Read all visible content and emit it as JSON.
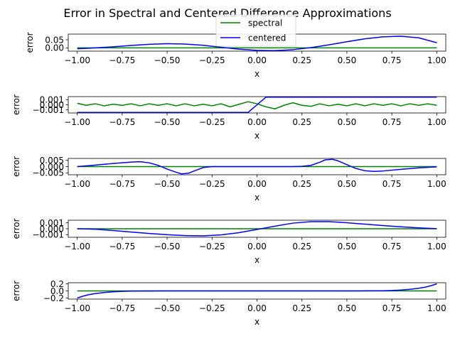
{
  "title": "Error in Spectral and Centered Difference Approximations",
  "legend": {
    "placement": "top-center",
    "entries": [
      "spectral",
      "centered"
    ]
  },
  "colors": {
    "spectral": "#008000",
    "centered": "#0000ff",
    "axes": "#000000"
  },
  "chart_data": [
    {
      "type": "line",
      "xlabel": "x",
      "ylabel": "error",
      "xlim": [
        -1.05,
        1.05
      ],
      "ylim": [
        -0.02,
        0.085
      ],
      "xticks": [
        -1.0,
        -0.75,
        -0.5,
        -0.25,
        0.0,
        0.25,
        0.5,
        0.75,
        1.0
      ],
      "xtick_labels": [
        "−1.00",
        "−0.75",
        "−0.50",
        "−0.25",
        "0.00",
        "0.25",
        "0.50",
        "0.75",
        "1.00"
      ],
      "yticks": [
        0.0,
        0.05
      ],
      "ytick_labels": [
        "0.00",
        "0.05"
      ],
      "series": [
        {
          "name": "spectral",
          "x": [
            -1,
            1
          ],
          "y": [
            0,
            0
          ]
        },
        {
          "name": "centered",
          "x": [
            -1,
            -0.9,
            -0.8,
            -0.7,
            -0.6,
            -0.5,
            -0.4,
            -0.3,
            -0.2,
            -0.1,
            0,
            0.1,
            0.2,
            0.3,
            0.4,
            0.5,
            0.6,
            0.7,
            0.8,
            0.9,
            1
          ],
          "y": [
            -0.005,
            0.0,
            0.007,
            0.015,
            0.022,
            0.026,
            0.024,
            0.016,
            0.004,
            -0.008,
            -0.015,
            -0.017,
            -0.011,
            0.002,
            0.019,
            0.038,
            0.056,
            0.068,
            0.072,
            0.062,
            0.032
          ]
        }
      ]
    },
    {
      "type": "line",
      "xlabel": "x",
      "ylabel": "error",
      "xlim": [
        -1.05,
        1.05
      ],
      "ylim": [
        -0.0016,
        0.0016
      ],
      "xticks": [
        -1.0,
        -0.75,
        -0.5,
        -0.25,
        0.0,
        0.25,
        0.5,
        0.75,
        1.0
      ],
      "xtick_labels": [
        "−1.00",
        "−0.75",
        "−0.50",
        "−0.25",
        "0.00",
        "0.25",
        "0.50",
        "0.75",
        "1.00"
      ],
      "yticks": [
        -0.001,
        0.0,
        0.001
      ],
      "ytick_labels": [
        "−0.001",
        "0.000",
        "0.001"
      ],
      "series": [
        {
          "name": "spectral",
          "x": [
            -1,
            -0.95,
            -0.9,
            -0.85,
            -0.8,
            -0.75,
            -0.7,
            -0.65,
            -0.6,
            -0.55,
            -0.5,
            -0.45,
            -0.4,
            -0.35,
            -0.3,
            -0.25,
            -0.2,
            -0.15,
            -0.1,
            -0.05,
            0,
            0.05,
            0.1,
            0.15,
            0.2,
            0.25,
            0.3,
            0.35,
            0.4,
            0.45,
            0.5,
            0.55,
            0.6,
            0.65,
            0.7,
            0.75,
            0.8,
            0.85,
            0.9,
            0.95,
            1
          ],
          "y": [
            0.0003,
            -0.0001,
            0.0002,
            -0.0002,
            0.0001,
            -0.0001,
            0.0002,
            -0.0002,
            0.0002,
            -0.0001,
            0.0002,
            -0.0002,
            0.0002,
            -0.0002,
            0.0001,
            -0.0002,
            0.0002,
            -0.0004,
            0.0001,
            0.0006,
            0.0002,
            -0.0004,
            -0.0008,
            -0.0001,
            0.0004,
            -0.0001,
            -0.0003,
            0.0002,
            -0.0002,
            0.0001,
            -0.0002,
            0.0002,
            -0.0002,
            0.0002,
            -0.0001,
            0.0002,
            -0.0002,
            0.0002,
            -0.0001,
            0.0002,
            -0.0001
          ]
        },
        {
          "name": "centered",
          "x": [
            -1,
            -0.05,
            0.05,
            1
          ],
          "y": [
            -0.0015,
            -0.0015,
            0.0015,
            0.0015
          ]
        }
      ]
    },
    {
      "type": "line",
      "xlabel": "x",
      "ylabel": "error",
      "xlim": [
        -1.05,
        1.05
      ],
      "ylim": [
        -0.0065,
        0.0065
      ],
      "xticks": [
        -1.0,
        -0.75,
        -0.5,
        -0.25,
        0.0,
        0.25,
        0.5,
        0.75,
        1.0
      ],
      "xtick_labels": [
        "−1.00",
        "−0.75",
        "−0.50",
        "−0.25",
        "0.00",
        "0.25",
        "0.50",
        "0.75",
        "1.00"
      ],
      "yticks": [
        -0.005,
        0.0,
        0.005
      ],
      "ytick_labels": [
        "−0.005",
        "0.000",
        "0.005"
      ],
      "series": [
        {
          "name": "spectral",
          "x": [
            -1,
            1
          ],
          "y": [
            0,
            0
          ]
        },
        {
          "name": "centered",
          "x": [
            -1,
            -0.9,
            -0.8,
            -0.7,
            -0.65,
            -0.6,
            -0.55,
            -0.5,
            -0.45,
            -0.42,
            -0.38,
            -0.35,
            -0.3,
            -0.25,
            -0.2,
            0,
            0.2,
            0.25,
            0.3,
            0.35,
            0.38,
            0.42,
            0.45,
            0.5,
            0.55,
            0.6,
            0.65,
            0.7,
            0.8,
            0.9,
            1
          ],
          "y": [
            0.0,
            0.0012,
            0.0025,
            0.0036,
            0.0039,
            0.003,
            0.001,
            -0.002,
            -0.0045,
            -0.0058,
            -0.0052,
            -0.0035,
            -0.0008,
            0.0,
            0.0,
            0.0,
            0.0,
            0.0002,
            0.001,
            0.0035,
            0.0054,
            0.0058,
            0.0046,
            0.0015,
            -0.0015,
            -0.0033,
            -0.0038,
            -0.0035,
            -0.0022,
            -0.001,
            -0.0002
          ]
        }
      ]
    },
    {
      "type": "line",
      "xlabel": "x",
      "ylabel": "error",
      "xlim": [
        -1.05,
        1.05
      ],
      "ylim": [
        -0.00145,
        0.00145
      ],
      "xticks": [
        -1.0,
        -0.75,
        -0.5,
        -0.25,
        0.0,
        0.25,
        0.5,
        0.75,
        1.0
      ],
      "xtick_labels": [
        "−1.00",
        "−0.75",
        "−0.50",
        "−0.25",
        "0.00",
        "0.25",
        "0.50",
        "0.75",
        "1.00"
      ],
      "yticks": [
        -0.001,
        0.0,
        0.001
      ],
      "ytick_labels": [
        "−0.001",
        "0.000",
        "0.001"
      ],
      "series": [
        {
          "name": "spectral",
          "x": [
            -1,
            1
          ],
          "y": [
            0,
            0
          ]
        },
        {
          "name": "centered",
          "x": [
            -1,
            -0.9,
            -0.8,
            -0.7,
            -0.6,
            -0.5,
            -0.4,
            -0.3,
            -0.2,
            -0.1,
            0,
            0.1,
            0.2,
            0.3,
            0.4,
            0.5,
            0.6,
            0.7,
            0.8,
            0.9,
            1
          ],
          "y": [
            0.0,
            -8e-05,
            -0.0003,
            -0.00056,
            -0.0008,
            -0.00101,
            -0.00116,
            -0.00121,
            -0.00104,
            -0.00066,
            -0.00012,
            0.00044,
            0.00096,
            0.00121,
            0.00121,
            0.00103,
            0.00078,
            0.00054,
            0.00033,
            0.00015,
            2e-05
          ]
        }
      ]
    },
    {
      "type": "line",
      "xlabel": "x",
      "ylabel": "error",
      "xlim": [
        -1.05,
        1.05
      ],
      "ylim": [
        -0.23,
        0.23
      ],
      "xticks": [
        -1.0,
        -0.75,
        -0.5,
        -0.25,
        0.0,
        0.25,
        0.5,
        0.75,
        1.0
      ],
      "xtick_labels": [
        "−1.00",
        "−0.75",
        "−0.50",
        "−0.25",
        "0.00",
        "0.25",
        "0.50",
        "0.75",
        "1.00"
      ],
      "yticks": [
        -0.2,
        0.0,
        0.2
      ],
      "ytick_labels": [
        "−0.2",
        "0.0",
        "0.2"
      ],
      "series": [
        {
          "name": "spectral",
          "x": [
            -1,
            1
          ],
          "y": [
            0,
            0
          ]
        },
        {
          "name": "centered",
          "x": [
            -1,
            -0.97,
            -0.94,
            -0.9,
            -0.85,
            -0.8,
            -0.75,
            -0.7,
            -0.6,
            -0.5,
            0,
            0.5,
            0.6,
            0.7,
            0.75,
            0.8,
            0.85,
            0.9,
            0.94,
            0.97,
            1
          ],
          "y": [
            -0.2,
            -0.15,
            -0.11,
            -0.075,
            -0.045,
            -0.025,
            -0.013,
            -0.006,
            -0.0015,
            0.0,
            0.0,
            0.0,
            0.0015,
            0.006,
            0.013,
            0.025,
            0.045,
            0.075,
            0.11,
            0.15,
            0.2
          ]
        }
      ]
    }
  ]
}
